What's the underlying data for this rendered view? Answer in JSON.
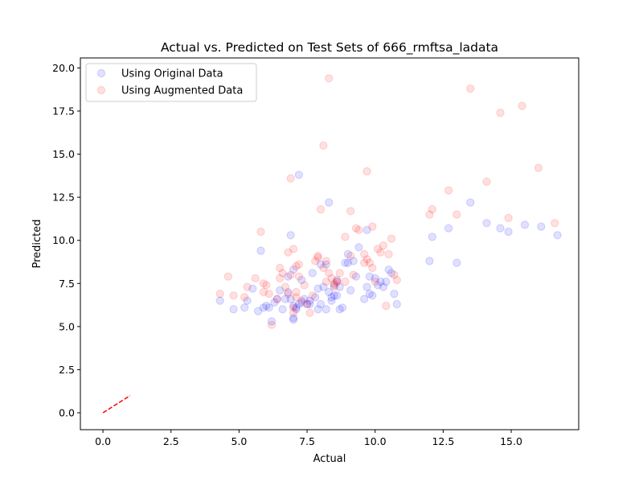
{
  "chart_data": {
    "type": "scatter",
    "title": "Actual vs. Predicted on Test Sets of 666_rmftsa_ladata",
    "xlabel": "Actual",
    "ylabel": "Predicted",
    "xlim": [
      -0.83,
      17.48
    ],
    "ylim": [
      -0.98,
      20.58
    ],
    "xticks": [
      0.0,
      2.5,
      5.0,
      7.5,
      10.0,
      12.5,
      15.0
    ],
    "xtick_labels": [
      "0.0",
      "2.5",
      "5.0",
      "7.5",
      "10.0",
      "12.5",
      "15.0"
    ],
    "yticks": [
      0.0,
      2.5,
      5.0,
      7.5,
      10.0,
      12.5,
      15.0,
      17.5,
      20.0
    ],
    "ytick_labels": [
      "0.0",
      "2.5",
      "5.0",
      "7.5",
      "10.0",
      "12.5",
      "15.0",
      "17.5",
      "20.0"
    ],
    "grid": false,
    "legend_position": "top-left",
    "reference_line": {
      "x": [
        0,
        1
      ],
      "y": [
        0,
        1
      ],
      "color": "#ff0000",
      "style": "dashed"
    },
    "series": [
      {
        "name": "Using Original Data",
        "color": "#0000ff",
        "alpha": 0.12,
        "points": [
          [
            4.3,
            6.5
          ],
          [
            4.8,
            6.0
          ],
          [
            5.2,
            6.1
          ],
          [
            5.3,
            6.5
          ],
          [
            5.5,
            7.2
          ],
          [
            5.7,
            5.9
          ],
          [
            5.8,
            9.4
          ],
          [
            5.9,
            6.1
          ],
          [
            6.0,
            6.2
          ],
          [
            6.1,
            6.1
          ],
          [
            6.2,
            5.3
          ],
          [
            6.3,
            6.4
          ],
          [
            6.4,
            6.6
          ],
          [
            6.5,
            7.1
          ],
          [
            6.6,
            6.0
          ],
          [
            6.7,
            6.6
          ],
          [
            6.8,
            7.0
          ],
          [
            6.8,
            7.9
          ],
          [
            6.9,
            10.3
          ],
          [
            6.9,
            6.6
          ],
          [
            7.0,
            5.4
          ],
          [
            7.0,
            5.5
          ],
          [
            7.0,
            6.2
          ],
          [
            7.0,
            8.3
          ],
          [
            7.1,
            6.0
          ],
          [
            7.1,
            6.1
          ],
          [
            7.2,
            13.8
          ],
          [
            7.2,
            6.3
          ],
          [
            7.3,
            6.4
          ],
          [
            7.3,
            7.7
          ],
          [
            7.4,
            6.6
          ],
          [
            7.5,
            6.3
          ],
          [
            7.6,
            6.5
          ],
          [
            7.6,
            6.3
          ],
          [
            7.7,
            8.1
          ],
          [
            7.8,
            6.7
          ],
          [
            7.9,
            7.2
          ],
          [
            7.9,
            6.0
          ],
          [
            8.0,
            6.3
          ],
          [
            8.0,
            8.6
          ],
          [
            8.1,
            7.3
          ],
          [
            8.2,
            6.0
          ],
          [
            8.2,
            8.6
          ],
          [
            8.3,
            7.0
          ],
          [
            8.3,
            12.2
          ],
          [
            8.4,
            6.7
          ],
          [
            8.4,
            6.5
          ],
          [
            8.5,
            6.8
          ],
          [
            8.5,
            7.4
          ],
          [
            8.6,
            6.8
          ],
          [
            8.6,
            7.7
          ],
          [
            8.7,
            7.3
          ],
          [
            8.7,
            6.0
          ],
          [
            8.8,
            6.1
          ],
          [
            8.9,
            8.7
          ],
          [
            9.0,
            8.7
          ],
          [
            9.0,
            9.2
          ],
          [
            9.1,
            7.1
          ],
          [
            9.2,
            8.8
          ],
          [
            9.3,
            7.9
          ],
          [
            9.4,
            9.6
          ],
          [
            9.6,
            6.6
          ],
          [
            9.7,
            7.3
          ],
          [
            9.7,
            10.6
          ],
          [
            9.8,
            7.9
          ],
          [
            9.8,
            6.9
          ],
          [
            9.9,
            6.8
          ],
          [
            10.0,
            7.8
          ],
          [
            10.1,
            7.4
          ],
          [
            10.2,
            7.6
          ],
          [
            10.3,
            7.3
          ],
          [
            10.4,
            7.6
          ],
          [
            10.5,
            8.3
          ],
          [
            10.6,
            8.1
          ],
          [
            10.7,
            6.9
          ],
          [
            10.8,
            6.3
          ],
          [
            12.0,
            8.8
          ],
          [
            12.1,
            10.2
          ],
          [
            12.7,
            10.7
          ],
          [
            13.0,
            8.7
          ],
          [
            13.5,
            12.2
          ],
          [
            14.1,
            11.0
          ],
          [
            14.6,
            10.7
          ],
          [
            14.9,
            10.5
          ],
          [
            15.5,
            10.9
          ],
          [
            16.1,
            10.8
          ],
          [
            16.7,
            10.3
          ]
        ]
      },
      {
        "name": "Using Augmented Data",
        "color": "#ff0000",
        "alpha": 0.12,
        "points": [
          [
            4.3,
            6.9
          ],
          [
            4.6,
            7.9
          ],
          [
            4.8,
            6.8
          ],
          [
            5.2,
            6.7
          ],
          [
            5.3,
            7.3
          ],
          [
            5.6,
            7.8
          ],
          [
            5.8,
            10.5
          ],
          [
            5.9,
            7.0
          ],
          [
            5.9,
            7.5
          ],
          [
            6.0,
            7.4
          ],
          [
            6.1,
            6.9
          ],
          [
            6.2,
            5.1
          ],
          [
            6.4,
            6.6
          ],
          [
            6.5,
            7.8
          ],
          [
            6.5,
            8.4
          ],
          [
            6.6,
            8.1
          ],
          [
            6.7,
            7.3
          ],
          [
            6.8,
            9.3
          ],
          [
            6.8,
            6.9
          ],
          [
            6.9,
            13.6
          ],
          [
            6.9,
            8.0
          ],
          [
            7.0,
            5.8
          ],
          [
            7.0,
            9.5
          ],
          [
            7.0,
            6.1
          ],
          [
            7.1,
            8.5
          ],
          [
            7.1,
            7.0
          ],
          [
            7.1,
            6.7
          ],
          [
            7.2,
            8.6
          ],
          [
            7.2,
            7.9
          ],
          [
            7.3,
            6.5
          ],
          [
            7.4,
            7.4
          ],
          [
            7.5,
            6.3
          ],
          [
            7.6,
            5.8
          ],
          [
            7.7,
            6.8
          ],
          [
            7.8,
            8.8
          ],
          [
            7.9,
            9.0
          ],
          [
            7.9,
            9.1
          ],
          [
            8.0,
            11.8
          ],
          [
            8.1,
            15.5
          ],
          [
            8.1,
            8.4
          ],
          [
            8.2,
            8.8
          ],
          [
            8.2,
            7.6
          ],
          [
            8.3,
            8.1
          ],
          [
            8.3,
            19.4
          ],
          [
            8.4,
            7.8
          ],
          [
            8.5,
            7.5
          ],
          [
            8.5,
            7.3
          ],
          [
            8.6,
            7.6
          ],
          [
            8.6,
            7.6
          ],
          [
            8.7,
            8.1
          ],
          [
            8.9,
            7.6
          ],
          [
            8.9,
            10.2
          ],
          [
            9.1,
            11.7
          ],
          [
            9.1,
            9.1
          ],
          [
            9.2,
            8.0
          ],
          [
            9.3,
            10.7
          ],
          [
            9.4,
            10.6
          ],
          [
            9.6,
            9.2
          ],
          [
            9.6,
            8.7
          ],
          [
            9.7,
            14.0
          ],
          [
            9.7,
            8.9
          ],
          [
            9.8,
            8.7
          ],
          [
            9.9,
            8.4
          ],
          [
            9.9,
            10.8
          ],
          [
            10.0,
            7.6
          ],
          [
            10.1,
            9.5
          ],
          [
            10.2,
            9.3
          ],
          [
            10.3,
            9.7
          ],
          [
            10.4,
            6.2
          ],
          [
            10.5,
            9.2
          ],
          [
            10.6,
            10.1
          ],
          [
            10.7,
            8.0
          ],
          [
            10.8,
            7.7
          ],
          [
            12.0,
            11.5
          ],
          [
            12.1,
            11.8
          ],
          [
            12.7,
            12.9
          ],
          [
            13.0,
            11.5
          ],
          [
            13.5,
            18.8
          ],
          [
            14.1,
            13.4
          ],
          [
            14.6,
            17.4
          ],
          [
            14.9,
            11.3
          ],
          [
            15.4,
            17.8
          ],
          [
            16.0,
            14.2
          ],
          [
            16.6,
            11.0
          ]
        ]
      }
    ]
  }
}
